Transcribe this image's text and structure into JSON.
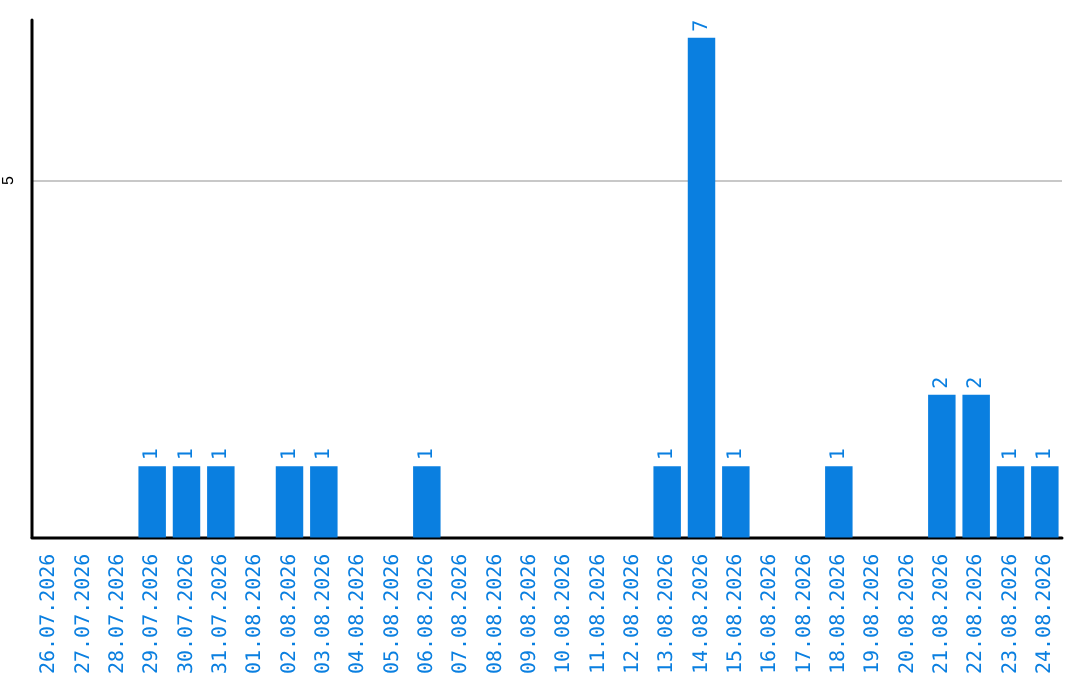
{
  "chart_data": {
    "type": "bar",
    "categories": [
      "26.07.2026",
      "27.07.2026",
      "28.07.2026",
      "29.07.2026",
      "30.07.2026",
      "31.07.2026",
      "01.08.2026",
      "02.08.2026",
      "03.08.2026",
      "04.08.2026",
      "05.08.2026",
      "06.08.2026",
      "07.08.2026",
      "08.08.2026",
      "09.08.2026",
      "10.08.2026",
      "11.08.2026",
      "12.08.2026",
      "13.08.2026",
      "14.08.2026",
      "15.08.2026",
      "16.08.2026",
      "17.08.2026",
      "18.08.2026",
      "19.08.2026",
      "20.08.2026",
      "21.08.2026",
      "22.08.2026",
      "23.08.2026",
      "24.08.2026"
    ],
    "values": [
      0,
      0,
      0,
      1,
      1,
      1,
      0,
      1,
      1,
      0,
      0,
      1,
      0,
      0,
      0,
      0,
      0,
      0,
      1,
      7,
      1,
      0,
      0,
      1,
      0,
      0,
      2,
      2,
      1,
      1
    ],
    "value_labels": [
      null,
      null,
      null,
      "1",
      "1",
      "1",
      null,
      "1",
      "1",
      null,
      null,
      "1",
      null,
      null,
      null,
      null,
      null,
      null,
      "1",
      "7",
      "1",
      null,
      null,
      "1",
      null,
      null,
      "2",
      "2",
      "1",
      "1"
    ],
    "color": "#0a7fe0",
    "ylim": [
      0,
      7.25
    ],
    "yticks": [
      5
    ],
    "grid": "y"
  }
}
